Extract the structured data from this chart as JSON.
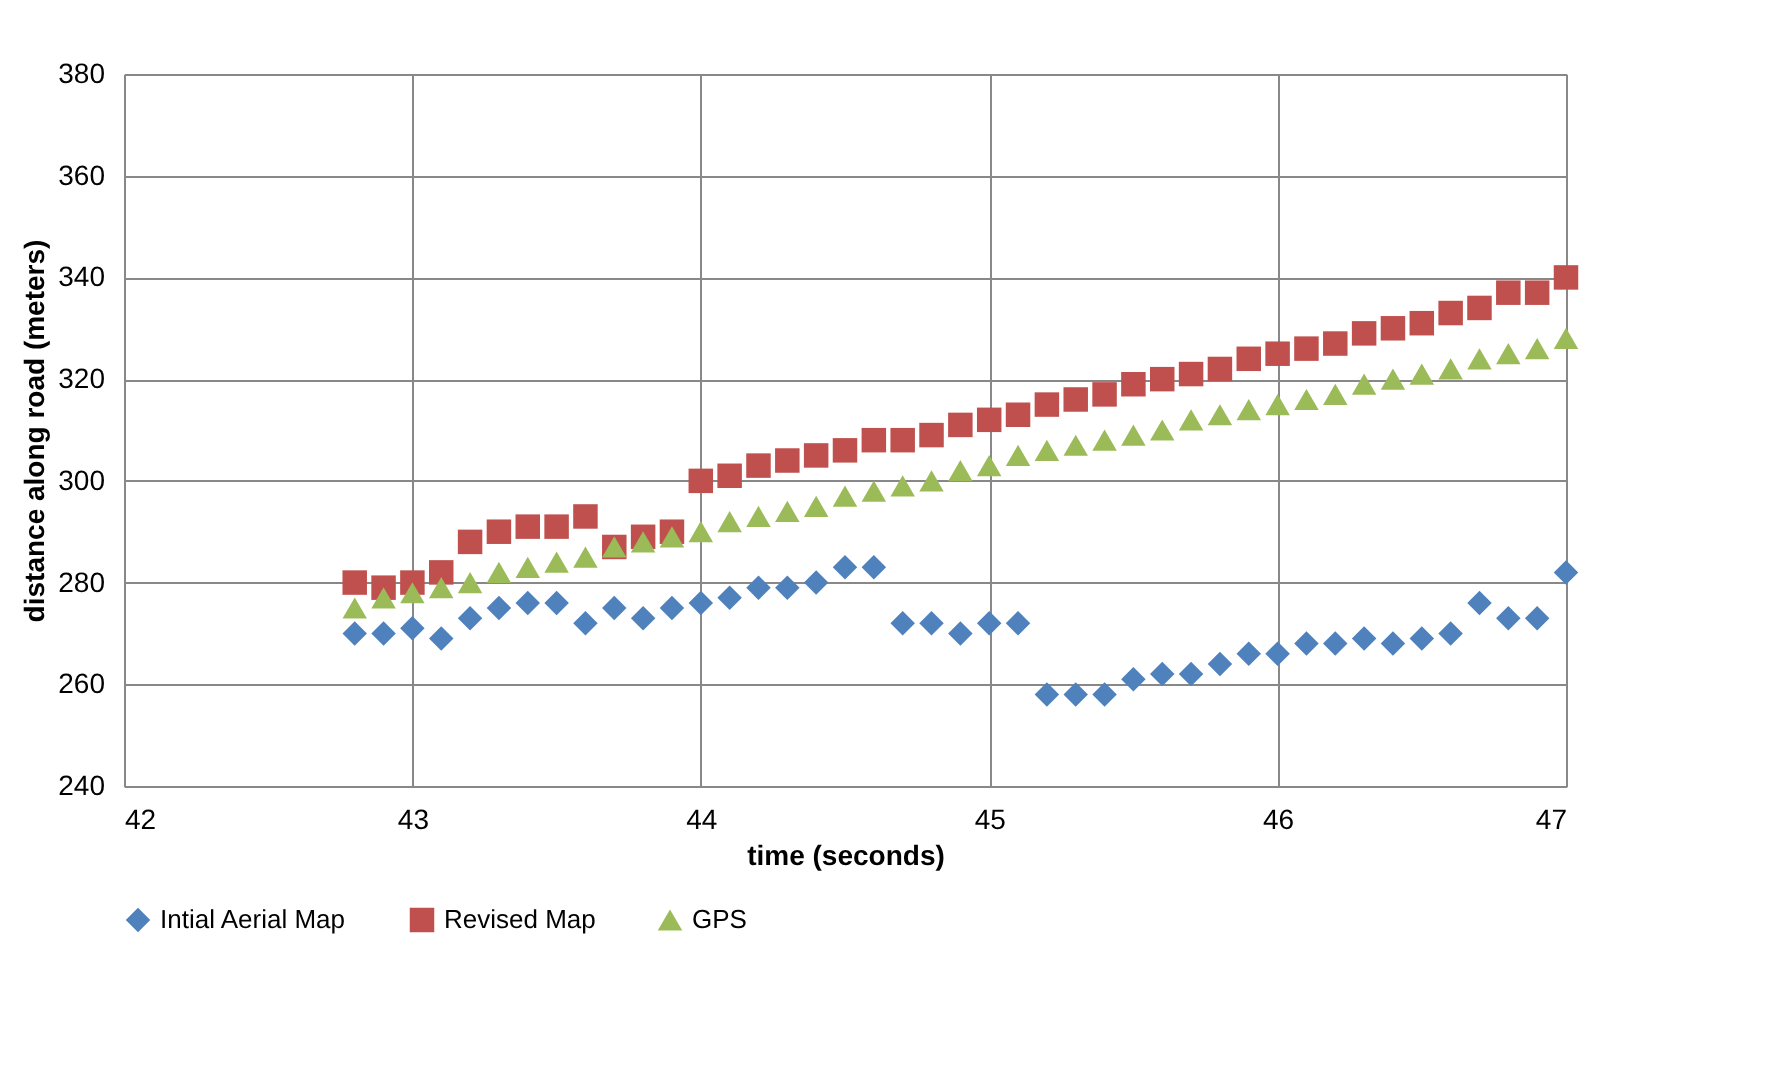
{
  "chart_data": {
    "type": "scatter",
    "xlabel": "time (seconds)",
    "ylabel": "distance along road  (meters)",
    "x": [
      42.8,
      42.9,
      43.0,
      43.1,
      43.2,
      43.3,
      43.4,
      43.5,
      43.6,
      43.7,
      43.8,
      43.9,
      44.0,
      44.1,
      44.2,
      44.3,
      44.4,
      44.5,
      44.6,
      44.7,
      44.8,
      44.9,
      45.0,
      45.1,
      45.2,
      45.3,
      45.4,
      45.5,
      45.6,
      45.7,
      45.8,
      45.9,
      46.0,
      46.1,
      46.2,
      46.3,
      46.4,
      46.5,
      46.6,
      46.7,
      46.8,
      46.9,
      47.0
    ],
    "series": [
      {
        "name": "Intial Aerial Map",
        "color": "#4f81bd",
        "marker": "diamond",
        "values": [
          270,
          270,
          271,
          269,
          273,
          275,
          276,
          276,
          272,
          275,
          273,
          275,
          276,
          277,
          279,
          279,
          280,
          283,
          283,
          272,
          272,
          270,
          272,
          272,
          258,
          258,
          258,
          261,
          262,
          262,
          264,
          266,
          266,
          268,
          268,
          269,
          268,
          269,
          270,
          276,
          273,
          273,
          282
        ]
      },
      {
        "name": "Revised Map",
        "color": "#c0504d",
        "marker": "square",
        "values": [
          280,
          279,
          280,
          282,
          288,
          290,
          291,
          291,
          293,
          287,
          289,
          290,
          300,
          301,
          303,
          304,
          305,
          306,
          308,
          308,
          309,
          311,
          312,
          313,
          315,
          316,
          317,
          319,
          320,
          321,
          322,
          324,
          325,
          326,
          327,
          329,
          330,
          331,
          333,
          334,
          337,
          337,
          340
        ]
      },
      {
        "name": "GPS",
        "color": "#9bbb59",
        "marker": "triangle",
        "values": [
          275,
          277,
          278,
          279,
          280,
          282,
          283,
          284,
          285,
          287,
          288,
          289,
          290,
          292,
          293,
          294,
          295,
          297,
          298,
          299,
          300,
          302,
          303,
          305,
          306,
          307,
          308,
          309,
          310,
          312,
          313,
          314,
          315,
          316,
          317,
          319,
          320,
          321,
          322,
          324,
          325,
          326,
          328
        ]
      }
    ],
    "xlim": [
      42,
      47
    ],
    "xticks": [
      42,
      43,
      44,
      45,
      46,
      47
    ],
    "ylim": [
      240,
      380
    ],
    "yticks": [
      240,
      260,
      280,
      300,
      320,
      340,
      360,
      380
    ],
    "grid": true,
    "legend": "bottom"
  }
}
